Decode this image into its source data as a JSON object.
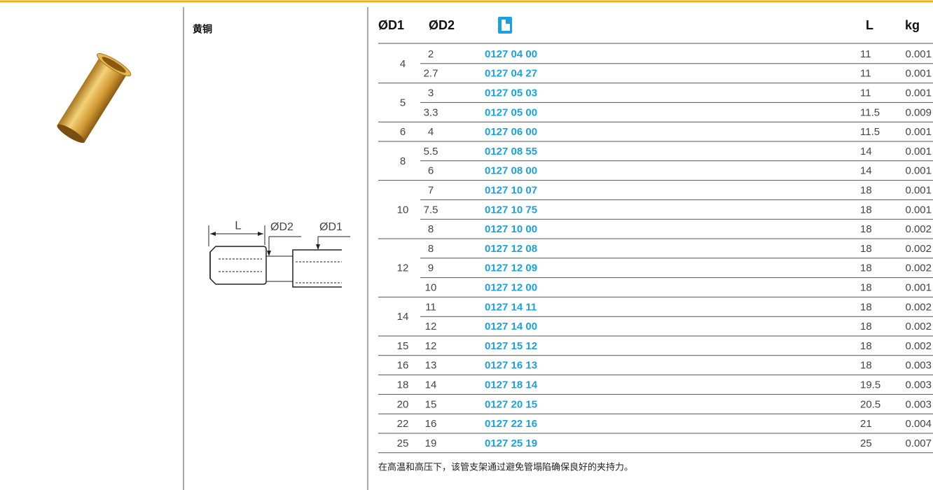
{
  "material": "黄铜",
  "diagram": {
    "length_label": "L",
    "inner_label": "ØD2",
    "outer_label": "ØD1"
  },
  "table": {
    "header": {
      "d1": "ØD1",
      "d2": "ØD2",
      "length": "L",
      "weight": "kg"
    },
    "groups": [
      {
        "d1": "4",
        "rows": [
          {
            "d2": "2",
            "code": "0127 04 00",
            "length": "11",
            "weight": "0.001"
          },
          {
            "d2": "2.7",
            "code": "0127 04 27",
            "length": "11",
            "weight": "0.001"
          }
        ]
      },
      {
        "d1": "5",
        "rows": [
          {
            "d2": "3",
            "code": "0127 05 03",
            "length": "11",
            "weight": "0.001"
          },
          {
            "d2": "3.3",
            "code": "0127 05 00",
            "length": "11.5",
            "weight": "0.009"
          }
        ]
      },
      {
        "d1": "6",
        "rows": [
          {
            "d2": "4",
            "code": "0127 06 00",
            "length": "11.5",
            "weight": "0.001"
          }
        ]
      },
      {
        "d1": "8",
        "rows": [
          {
            "d2": "5.5",
            "code": "0127 08 55",
            "length": "14",
            "weight": "0.001"
          },
          {
            "d2": "6",
            "code": "0127 08 00",
            "length": "14",
            "weight": "0.001"
          }
        ]
      },
      {
        "d1": "10",
        "rows": [
          {
            "d2": "7",
            "code": "0127 10 07",
            "length": "18",
            "weight": "0.001"
          },
          {
            "d2": "7.5",
            "code": "0127 10 75",
            "length": "18",
            "weight": "0.001"
          },
          {
            "d2": "8",
            "code": "0127 10 00",
            "length": "18",
            "weight": "0.002"
          }
        ]
      },
      {
        "d1": "12",
        "rows": [
          {
            "d2": "8",
            "code": "0127 12 08",
            "length": "18",
            "weight": "0.002"
          },
          {
            "d2": "9",
            "code": "0127 12 09",
            "length": "18",
            "weight": "0.002"
          },
          {
            "d2": "10",
            "code": "0127 12 00",
            "length": "18",
            "weight": "0.001"
          }
        ]
      },
      {
        "d1": "14",
        "rows": [
          {
            "d2": "11",
            "code": "0127 14 11",
            "length": "18",
            "weight": "0.002"
          },
          {
            "d2": "12",
            "code": "0127 14 00",
            "length": "18",
            "weight": "0.002"
          }
        ]
      },
      {
        "d1": "15",
        "rows": [
          {
            "d2": "12",
            "code": "0127 15 12",
            "length": "18",
            "weight": "0.002"
          }
        ]
      },
      {
        "d1": "16",
        "rows": [
          {
            "d2": "13",
            "code": "0127 16 13",
            "length": "18",
            "weight": "0.003"
          }
        ]
      },
      {
        "d1": "18",
        "rows": [
          {
            "d2": "14",
            "code": "0127 18 14",
            "length": "19.5",
            "weight": "0.003"
          }
        ]
      },
      {
        "d1": "20",
        "rows": [
          {
            "d2": "15",
            "code": "0127 20 15",
            "length": "20.5",
            "weight": "0.003"
          }
        ]
      },
      {
        "d1": "22",
        "rows": [
          {
            "d2": "16",
            "code": "0127 22 16",
            "length": "21",
            "weight": "0.004"
          }
        ]
      },
      {
        "d1": "25",
        "rows": [
          {
            "d2": "19",
            "code": "0127 25 19",
            "length": "25",
            "weight": "0.007"
          }
        ]
      }
    ]
  },
  "note": "在高温和高压下，该管支架通过避免管塌陷确保良好的夹持力。"
}
